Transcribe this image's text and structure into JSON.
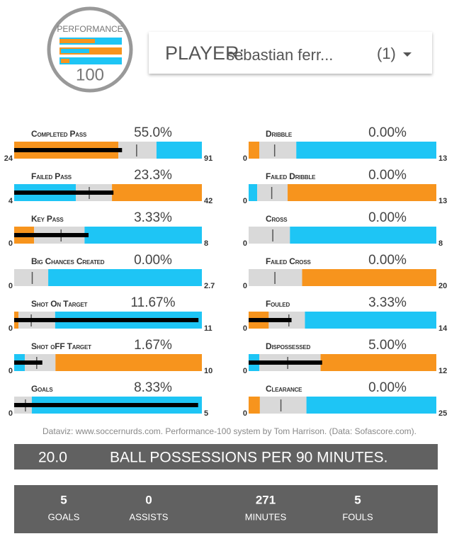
{
  "logo": {
    "top": "PERFORMANCE",
    "bottom": "100"
  },
  "selector": {
    "label": "PLAYER:",
    "value": "sebastian ferr...",
    "count": "(1)"
  },
  "colors": {
    "orange": "#f7941d",
    "cyan": "#1ec5f5",
    "grey": "#d9d9d9",
    "marker": "#000000"
  },
  "metrics": [
    {
      "label": "Completed Pass",
      "percent": "55.0%",
      "min": 24,
      "max": 91,
      "low_color": "orange",
      "high_color": "cyan",
      "bands": [
        61.2,
        74.8
      ],
      "average": 67.7,
      "value": 62.5
    },
    {
      "label": "Failed Pass",
      "percent": "23.3%",
      "min": 4,
      "max": 42,
      "low_color": "cyan",
      "high_color": "orange",
      "bands": [
        16.5,
        23.8
      ],
      "average": 19.2,
      "value": 24.1
    },
    {
      "label": "Key Pass",
      "percent": "3.33%",
      "min": 0,
      "max": 8,
      "low_color": "orange",
      "high_color": "cyan",
      "bands": [
        0.85,
        3.0
      ],
      "average": 2.0,
      "value": 3.17
    },
    {
      "label": "Big Chances Created",
      "percent": "0.00%",
      "min": 0,
      "max": 2.7,
      "low_color": "orange",
      "high_color": "cyan",
      "bands": [
        0,
        0.49
      ],
      "average": 0.26,
      "value": 0
    },
    {
      "label": "Shot On Target",
      "percent": "11.67%",
      "min": 0,
      "max": 11,
      "low_color": "orange",
      "high_color": "cyan",
      "bands": [
        0.25,
        2.4
      ],
      "average": 1.0,
      "value": 10.8
    },
    {
      "label": "Shot oFF Target",
      "percent": "1.67%",
      "min": 0,
      "max": 10,
      "low_color": "cyan",
      "high_color": "orange",
      "bands": [
        0.57,
        2.2
      ],
      "average": 1.2,
      "value": 1.5
    },
    {
      "label": "Goals",
      "percent": "8.33%",
      "min": 0,
      "max": 5,
      "low_color": "orange",
      "high_color": "cyan",
      "bands": [
        0,
        0.47
      ],
      "average": 0.3,
      "value": 4.9
    },
    {
      "label": "Dribble",
      "percent": "0.00%",
      "min": 0,
      "max": 13,
      "low_color": "orange",
      "high_color": "cyan",
      "bands": [
        0.74,
        3.3
      ],
      "average": 1.8,
      "value": 0
    },
    {
      "label": "Failed Dribble",
      "percent": "0.00%",
      "min": 0,
      "max": 13,
      "low_color": "cyan",
      "high_color": "orange",
      "bands": [
        0.59,
        2.7
      ],
      "average": 1.6,
      "value": 0
    },
    {
      "label": "Cross",
      "percent": "0.00%",
      "min": 0,
      "max": 8,
      "low_color": "orange",
      "high_color": "cyan",
      "bands": [
        0,
        1.76
      ],
      "average": 1.03,
      "value": 0
    },
    {
      "label": "Failed Cross",
      "percent": "0.00%",
      "min": 0,
      "max": 20,
      "low_color": "cyan",
      "high_color": "orange",
      "bands": [
        0,
        5.7
      ],
      "average": 2.8,
      "value": 0
    },
    {
      "label": "Fouled",
      "percent": "3.33%",
      "min": 0,
      "max": 14,
      "low_color": "orange",
      "high_color": "cyan",
      "bands": [
        1.5,
        4.2
      ],
      "average": 3.0,
      "value": 3.2
    },
    {
      "label": "Dispossessed",
      "percent": "5.00%",
      "min": 0,
      "max": 12,
      "low_color": "cyan",
      "high_color": "orange",
      "bands": [
        0.68,
        4.6
      ],
      "average": 2.5,
      "value": 4.7
    },
    {
      "label": "Clearance",
      "percent": "0.00%",
      "min": 0,
      "max": 25,
      "low_color": "orange",
      "high_color": "cyan",
      "bands": [
        1.5,
        7.7
      ],
      "average": 4.3,
      "value": 0
    }
  ],
  "credit": "Dataviz: www.soccernurds.com. Performance-100 system by Tom Harrison. (Data: Sofascore.com).",
  "possession": {
    "value": "20.0",
    "label": "BALL POSSESSIONS PER 90 MINUTES."
  },
  "stats": [
    {
      "value": 5,
      "label": "GOALS"
    },
    {
      "value": 0,
      "label": "ASSISTS"
    },
    {
      "value": 271,
      "label": "MINUTES"
    },
    {
      "value": 5,
      "label": "FOULS"
    }
  ]
}
